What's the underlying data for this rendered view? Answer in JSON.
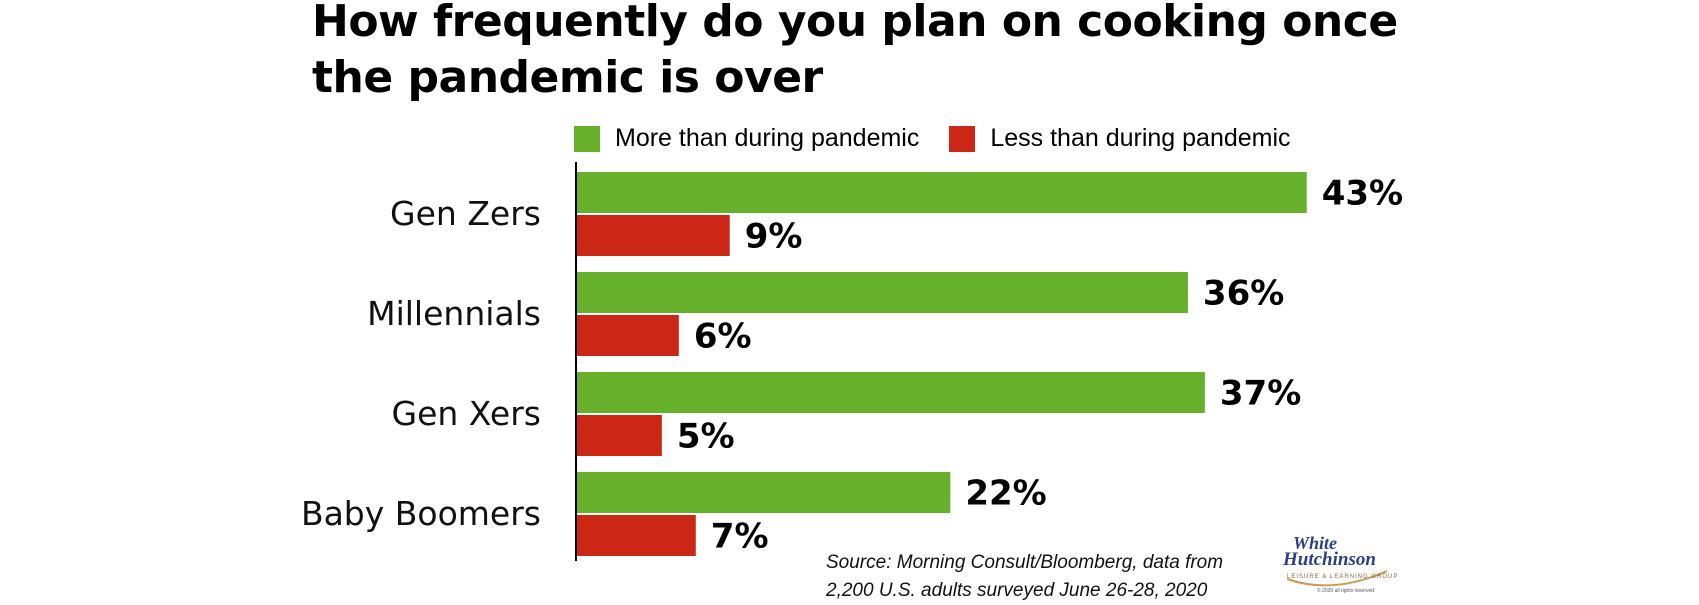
{
  "chart_data": {
    "type": "bar",
    "orientation": "horizontal",
    "title": "How frequently do you plan on cooking once the pandemic is over",
    "title_lines": [
      "How frequently do you plan on cooking once",
      "the pandemic is over"
    ],
    "categories": [
      "Gen Zers",
      "Millennials",
      "Gen Xers",
      "Baby Boomers"
    ],
    "series": [
      {
        "name": "More than during pandemic",
        "color": "#66b02c",
        "values": [
          43,
          36,
          37,
          22
        ],
        "labels": [
          "43%",
          "36%",
          "37%",
          "22%"
        ]
      },
      {
        "name": "Less than during pandemic",
        "color": "#cc2616",
        "values": [
          9,
          6,
          5,
          7
        ],
        "labels": [
          "9%",
          "6%",
          "5%",
          "7%"
        ]
      }
    ],
    "unit": "%",
    "xlim": [
      0,
      50
    ],
    "grid": false,
    "legend_position": "top",
    "source": [
      "Source: Morning Consult/Bloomberg, data from",
      "2,200 U.S. adults surveyed June 26-28, 2020"
    ]
  },
  "logo": {
    "line1": "White",
    "line2": "Hutchinson",
    "tagline": "LEISURE & LEARNING GROUP",
    "copyright": "© 2020 all rights reserved"
  }
}
